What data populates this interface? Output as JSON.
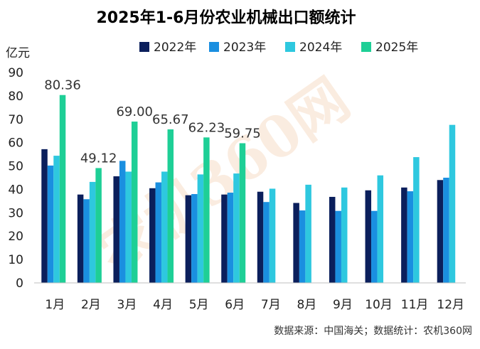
{
  "chart_data": {
    "type": "bar",
    "title": "2025年1-6月份农业机械出口额统计",
    "ylabel": "亿元",
    "ylim": [
      0,
      90
    ],
    "yticks": [
      0,
      10,
      20,
      30,
      40,
      50,
      60,
      70,
      80,
      90
    ],
    "grid": false,
    "legend_position": "top",
    "categories": [
      "1月",
      "2月",
      "3月",
      "4月",
      "5月",
      "6月",
      "7月",
      "8月",
      "9月",
      "10月",
      "11月",
      "12月"
    ],
    "series": [
      {
        "name": "2022年",
        "color": "#0b1f5c",
        "values": [
          57.2,
          37.8,
          45.6,
          40.5,
          37.5,
          37.8,
          39.0,
          34.2,
          36.8,
          39.6,
          40.8,
          44.0
        ]
      },
      {
        "name": "2023年",
        "color": "#1a8fe0",
        "values": [
          50.2,
          35.8,
          52.2,
          43.0,
          38.0,
          38.6,
          34.6,
          31.0,
          30.8,
          30.8,
          39.2,
          45.0
        ]
      },
      {
        "name": "2024年",
        "color": "#2ec8df",
        "values": [
          54.4,
          43.2,
          47.6,
          47.6,
          46.4,
          46.8,
          40.3,
          42.0,
          40.8,
          46.0,
          53.8,
          67.6
        ]
      },
      {
        "name": "2025年",
        "color": "#1ecf96",
        "values": [
          80.36,
          49.12,
          69.0,
          65.67,
          62.23,
          59.75,
          null,
          null,
          null,
          null,
          null,
          null
        ]
      }
    ],
    "data_labels": [
      "80.36",
      "49.12",
      "69.00",
      "65.67",
      "62.23",
      "59.75"
    ]
  },
  "footer": {
    "source_text": "数据来源：中国海关；数据统计：农机360网"
  },
  "watermark": {
    "text": "农机360网"
  }
}
